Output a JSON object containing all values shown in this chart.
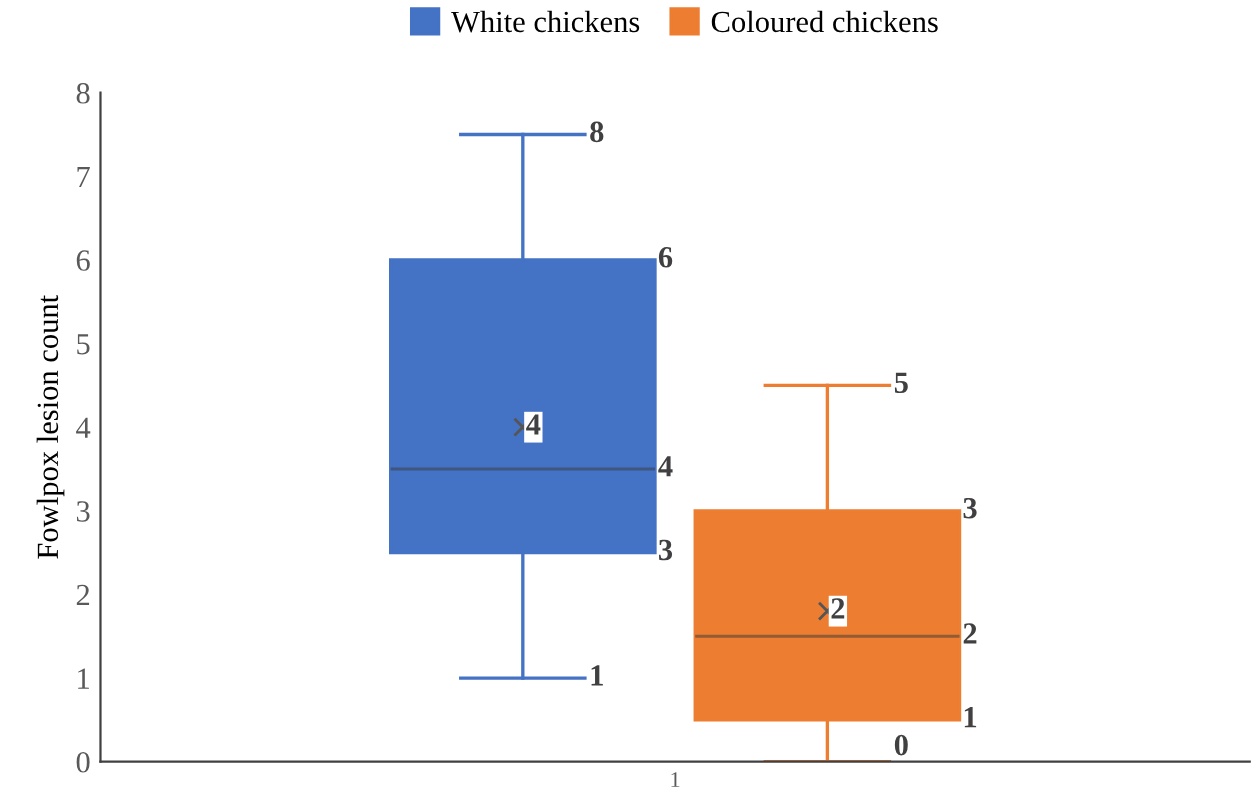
{
  "chart_data": {
    "type": "box",
    "ylabel": "Fowlpox lesion count",
    "categories": [
      "1"
    ],
    "ylim": [
      0,
      8
    ],
    "yticks": [
      0,
      1,
      2,
      3,
      4,
      5,
      6,
      7,
      8
    ],
    "grid": false,
    "legend": "top",
    "series": [
      {
        "name": "White chickens",
        "color": "#4472c4",
        "boxes": [
          {
            "low": 1,
            "q1": 2.5,
            "median": 3.5,
            "q3": 6,
            "high": 7.5,
            "mean": 4
          }
        ]
      },
      {
        "name": "Coloured chickens",
        "color": "#ed7d31",
        "boxes": [
          {
            "low": 0,
            "q1": 0.5,
            "median": 1.5,
            "q3": 3,
            "high": 4.5,
            "mean": 1.8
          }
        ]
      }
    ],
    "annotations": [
      "8",
      "6",
      "4",
      "4",
      "3",
      "1",
      "5",
      "3",
      "2",
      "2",
      "1",
      "0"
    ]
  }
}
